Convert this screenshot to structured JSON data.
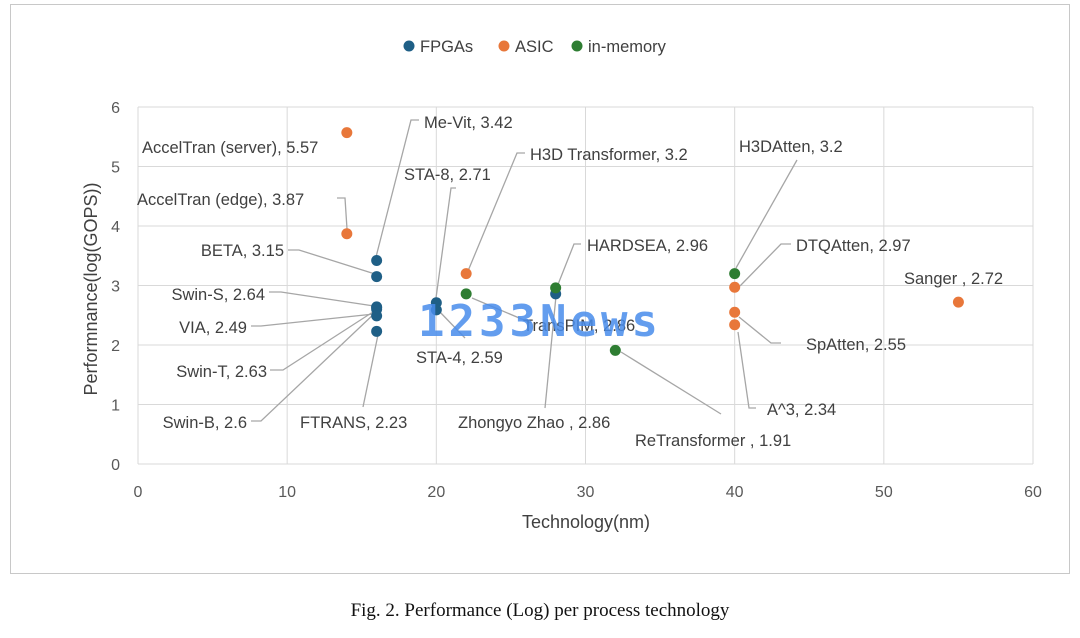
{
  "chart_data": {
    "type": "scatter",
    "title": "",
    "xlabel": "Technology(nm)",
    "ylabel": "Performnance(log(GOPS))",
    "xlim": [
      0,
      60
    ],
    "ylim": [
      0,
      6
    ],
    "xticks": [
      "0",
      "10",
      "20",
      "30",
      "40",
      "50",
      "60"
    ],
    "yticks": [
      "0",
      "1",
      "2",
      "3",
      "4",
      "5",
      "6"
    ],
    "grid": true,
    "legend": "top",
    "series": [
      {
        "name": "FPGAs",
        "color": "#1f5f86",
        "points": [
          {
            "x": 16,
            "y": 3.42,
            "label": "Me-Vit, 3.42"
          },
          {
            "x": 16,
            "y": 3.15,
            "label": "BETA, 3.15"
          },
          {
            "x": 16,
            "y": 2.64,
            "label": "Swin-S, 2.64"
          },
          {
            "x": 16,
            "y": 2.63,
            "label": "Swin-T, 2.63"
          },
          {
            "x": 16,
            "y": 2.6,
            "label": "Swin-B, 2.6"
          },
          {
            "x": 16,
            "y": 2.49,
            "label": "VIA, 2.49"
          },
          {
            "x": 16,
            "y": 2.23,
            "label": "FTRANS, 2.23"
          },
          {
            "x": 20,
            "y": 2.71,
            "label": "STA-8, 2.71"
          },
          {
            "x": 20,
            "y": 2.59,
            "label": "STA-4, 2.59"
          },
          {
            "x": 28,
            "y": 2.86,
            "label": "Zhongyo Zhao , 2.86"
          }
        ]
      },
      {
        "name": "ASIC",
        "color": "#e8773a",
        "points": [
          {
            "x": 14,
            "y": 5.57,
            "label": "AccelTran (server), 5.57"
          },
          {
            "x": 14,
            "y": 3.87,
            "label": "AccelTran (edge), 3.87"
          },
          {
            "x": 22,
            "y": 3.2,
            "label": "H3D Transformer, 3.2"
          },
          {
            "x": 40,
            "y": 2.97,
            "label": "DTQAtten, 2.97"
          },
          {
            "x": 40,
            "y": 2.55,
            "label": "SpAtten, 2.55"
          },
          {
            "x": 40,
            "y": 2.34,
            "label": "A^3, 2.34"
          },
          {
            "x": 55,
            "y": 2.72,
            "label": "Sanger , 2.72"
          }
        ]
      },
      {
        "name": "in-memory",
        "color": "#2e7d32",
        "points": [
          {
            "x": 22,
            "y": 2.86,
            "label": "TransPIM, 2.86"
          },
          {
            "x": 28,
            "y": 2.96,
            "label": "HARDSEA, 2.96"
          },
          {
            "x": 32,
            "y": 1.91,
            "label": "ReTransformer , 1.91"
          },
          {
            "x": 40,
            "y": 3.2,
            "label": "H3DAtten, 3.2"
          }
        ]
      }
    ]
  },
  "caption": "Fig. 2.  Performance (Log) per process technology",
  "watermark": "1233News"
}
